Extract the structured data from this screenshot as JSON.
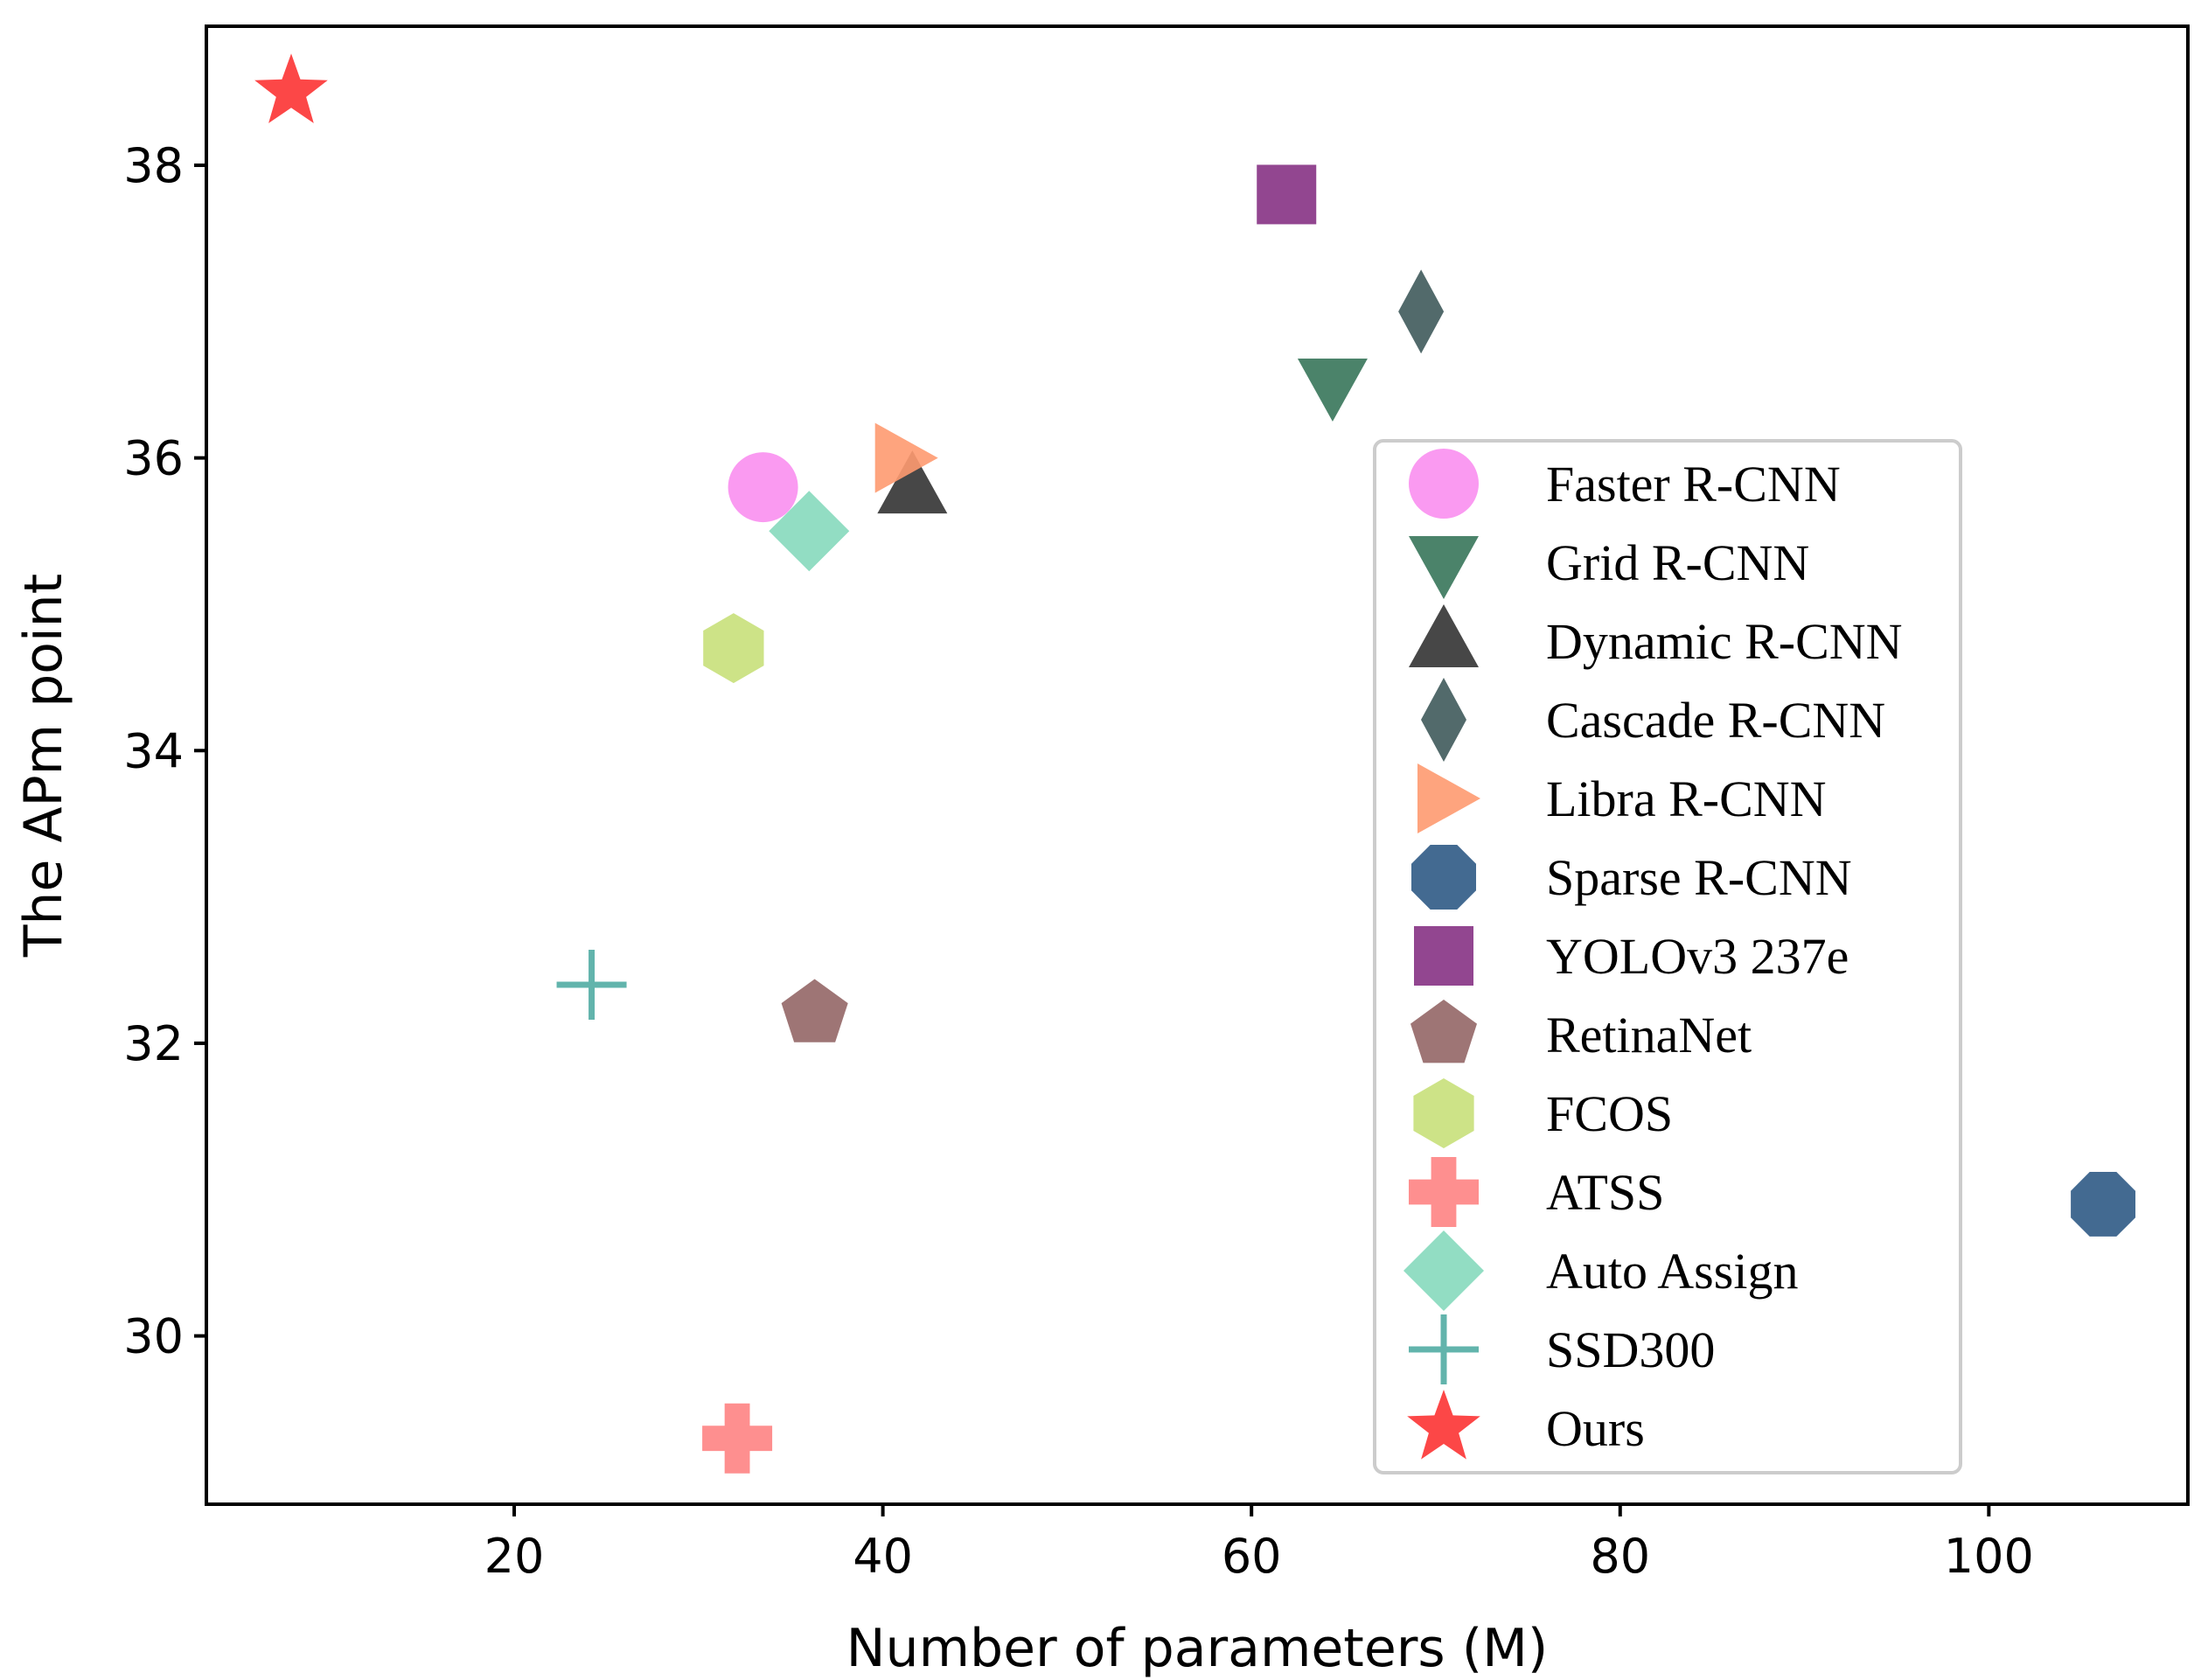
{
  "chart_data": {
    "type": "scatter",
    "title": "",
    "xlabel": "Number of parameters (M)",
    "ylabel": "The APm point",
    "xlim": [
      3.3,
      110.8
    ],
    "ylim": [
      28.85,
      38.95
    ],
    "xticks": [
      20,
      40,
      60,
      80,
      100
    ],
    "yticks": [
      30,
      32,
      34,
      36,
      38
    ],
    "grid": false,
    "legend_position": "center-right",
    "series": [
      {
        "name": "Faster R-CNN",
        "marker": "circle",
        "color": "#f98ff0",
        "x": 33.5,
        "y": 35.8
      },
      {
        "name": "Grid R-CNN",
        "marker": "triangle-down",
        "color": "#37765a",
        "x": 64.4,
        "y": 36.5
      },
      {
        "name": "Dynamic R-CNN",
        "marker": "triangle-up",
        "color": "#333333",
        "x": 41.6,
        "y": 35.8
      },
      {
        "name": "Cascade R-CNN",
        "marker": "diamond-thin",
        "color": "#3f5a5b",
        "x": 69.2,
        "y": 37.0
      },
      {
        "name": "Libra R-CNN",
        "marker": "triangle-right",
        "color": "#fe9a70",
        "x": 41.0,
        "y": 36.0
      },
      {
        "name": "Sparse R-CNN",
        "marker": "octagon",
        "color": "#2f5a85",
        "x": 106.2,
        "y": 30.9
      },
      {
        "name": "YOLOv3 237e",
        "marker": "square",
        "color": "#863284",
        "x": 61.9,
        "y": 37.8
      },
      {
        "name": "RetinaNet",
        "marker": "pentagon",
        "color": "#936666",
        "x": 36.3,
        "y": 32.2
      },
      {
        "name": "FCOS",
        "marker": "hexagon",
        "color": "#c8e07a",
        "x": 31.9,
        "y": 34.7
      },
      {
        "name": "ATSS",
        "marker": "plus-filled",
        "color": "#fe8383",
        "x": 32.1,
        "y": 29.3
      },
      {
        "name": "Auto Assign",
        "marker": "diamond",
        "color": "#86d9bd",
        "x": 36.0,
        "y": 35.5
      },
      {
        "name": "SSD300",
        "marker": "plus",
        "color": "#52aca4",
        "x": 24.2,
        "y": 32.4
      },
      {
        "name": "Ours",
        "marker": "star",
        "color": "#fc3333",
        "x": 7.9,
        "y": 38.5
      }
    ]
  }
}
